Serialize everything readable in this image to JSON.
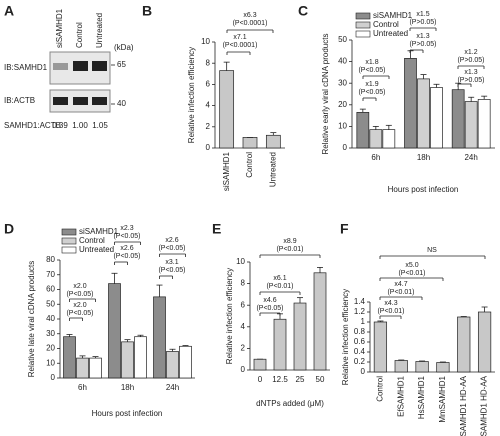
{
  "blot": {
    "panel": "A",
    "lanes": [
      "siSAMHD1",
      "Control",
      "Untreated"
    ],
    "unit": "(kDa)",
    "rows": [
      "IB:SAMHD1",
      "IB:ACTB"
    ],
    "markers": [
      "65",
      "40"
    ],
    "ratio_label": "SAMHD1:ACTB",
    "ratios": [
      "0.39",
      "1.00",
      "1.05"
    ]
  },
  "chart_data": [
    {
      "type": "bar",
      "panel": "B",
      "y_label": "Relative infection efficiency",
      "categories": [
        "siSAMHD1",
        "Control",
        "Untreated"
      ],
      "values": [
        7.3,
        1.0,
        1.2
      ],
      "errors": [
        0.8,
        0,
        0.25
      ],
      "color": "#c8c8c8",
      "ylim": [
        0,
        10
      ],
      "yticks": [
        0,
        2,
        4,
        6,
        8,
        10
      ],
      "annotations": [
        {
          "text": "x6.3",
          "note": "(P<0.0001)"
        },
        {
          "text": "x7.1",
          "note": "(P<0.0001)"
        }
      ]
    },
    {
      "type": "bar",
      "panel": "C",
      "y_label": "Relative early viral cDNA products",
      "x_label": "Hours post infection",
      "categories": [
        "6h",
        "18h",
        "24h"
      ],
      "series": [
        {
          "name": "siSAMHD1",
          "color": "#8c8c8c",
          "values": [
            16.5,
            41.5,
            27
          ],
          "errors": [
            1.5,
            3.5,
            3
          ]
        },
        {
          "name": "Control",
          "color": "#d0d0d0",
          "values": [
            8.5,
            32,
            21.5
          ],
          "errors": [
            1.5,
            2,
            2
          ]
        },
        {
          "name": "Untreated",
          "color": "#ffffff",
          "values": [
            8.5,
            28,
            22.5
          ],
          "errors": [
            2,
            1.5,
            1.5
          ]
        }
      ],
      "ylim": [
        0,
        50
      ],
      "yticks": [
        0,
        10,
        20,
        30,
        40,
        50
      ],
      "annotations": [
        {
          "text": "x1.8",
          "note": "(P<0.05)"
        },
        {
          "text": "x1.9",
          "note": "(P<0.05)"
        },
        {
          "text": "x1.5",
          "note": "(P>0.05)"
        },
        {
          "text": "x1.3",
          "note": "(P>0.05)"
        },
        {
          "text": "x1.2",
          "note": "(P>0.05)"
        },
        {
          "text": "x1.3",
          "note": "(P>0.05)"
        }
      ]
    },
    {
      "type": "bar",
      "panel": "D",
      "y_label": "Relative late viral cDNA products",
      "x_label": "Hours post infection",
      "categories": [
        "6h",
        "18h",
        "24h"
      ],
      "series": [
        {
          "name": "siSAMHD1",
          "color": "#8c8c8c",
          "values": [
            28,
            64,
            55
          ],
          "errors": [
            1.5,
            7,
            8
          ]
        },
        {
          "name": "Control",
          "color": "#d0d0d0",
          "values": [
            13.5,
            24.5,
            18
          ],
          "errors": [
            1.5,
            1.5,
            1.5
          ]
        },
        {
          "name": "Untreated",
          "color": "#ffffff",
          "values": [
            13.5,
            28,
            21.5
          ],
          "errors": [
            1,
            1,
            0.5
          ]
        }
      ],
      "ylim": [
        0,
        80
      ],
      "yticks": [
        0,
        10,
        20,
        30,
        40,
        50,
        60,
        70,
        80
      ],
      "annotations": [
        {
          "text": "x2.0",
          "note": "(P<0.05)"
        },
        {
          "text": "x2.0",
          "note": "(P<0.05)"
        },
        {
          "text": "x2.3",
          "note": "(P<0.05)"
        },
        {
          "text": "x2.6",
          "note": "(P<0.05)"
        },
        {
          "text": "x2.6",
          "note": "(P<0.05)"
        },
        {
          "text": "x3.1",
          "note": "(P<0.05)"
        }
      ]
    },
    {
      "type": "bar",
      "panel": "E",
      "y_label": "Relative infection efficiency",
      "x_label": "dNTPs added (μM)",
      "categories": [
        "0",
        "12.5",
        "25",
        "50"
      ],
      "values": [
        1,
        4.7,
        6.2,
        9.0
      ],
      "errors": [
        0,
        0.5,
        0.5,
        0.5
      ],
      "color": "#c8c8c8",
      "ylim": [
        0,
        10
      ],
      "yticks": [
        0,
        2,
        4,
        6,
        8,
        10
      ],
      "annotations": [
        {
          "text": "x8.9",
          "note": "(P<0.01)"
        },
        {
          "text": "x6.1",
          "note": "(P<0.01)"
        },
        {
          "text": "x4.6",
          "note": "(P<0.05)"
        }
      ]
    },
    {
      "type": "bar",
      "panel": "F",
      "y_label": "Relative infection efficiency",
      "categories": [
        "Control",
        "EfSAMHD1",
        "HsSAMHD1",
        "MmSAMHD1",
        "EfSAMHD1 HD-AA",
        "HsSAMHD1 HD-AA"
      ],
      "values": [
        1.0,
        0.23,
        0.21,
        0.19,
        1.1,
        1.2
      ],
      "errors": [
        0.02,
        0.01,
        0.01,
        0.01,
        0.01,
        0.1
      ],
      "color": "#c8c8c8",
      "ylim": [
        0,
        1.4
      ],
      "yticks": [
        0,
        0.2,
        0.4,
        0.6,
        0.8,
        1,
        1.2,
        1.4
      ],
      "annotations": [
        {
          "text": "NS"
        },
        {
          "text": "x5.0",
          "note": "(P<0.01)"
        },
        {
          "text": "x4.7",
          "note": "(P<0.01)"
        },
        {
          "text": "x4.3",
          "note": "(P<0.01)"
        }
      ]
    }
  ]
}
